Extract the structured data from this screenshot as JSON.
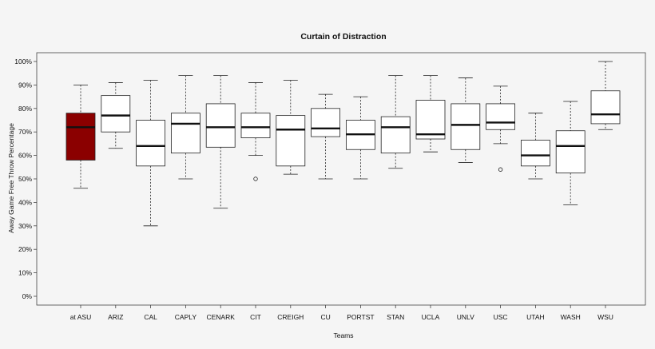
{
  "chart_data": {
    "type": "boxplot",
    "title": "Curtain of Distraction",
    "xlabel": "Teams",
    "ylabel": "Away Game Free Throw Percentage",
    "ylim": [
      0,
      100
    ],
    "yticks": [
      "0%",
      "10%",
      "20%",
      "30%",
      "40%",
      "50%",
      "60%",
      "70%",
      "80%",
      "90%",
      "100%"
    ],
    "ytick_values": [
      0,
      10,
      20,
      30,
      40,
      50,
      60,
      70,
      80,
      90,
      100
    ],
    "grid": false,
    "colors": {
      "highlight": "#8b0000",
      "default_fill": "#ffffff",
      "stroke": "#222222"
    },
    "categories": [
      "at ASU",
      "ARIZ",
      "CAL",
      "CAPLY",
      "CENARK",
      "CIT",
      "CREIGH",
      "CU",
      "PORTST",
      "STAN",
      "UCLA",
      "UNLV",
      "USC",
      "UTAH",
      "WASH",
      "WSU"
    ],
    "series": [
      {
        "category": "at ASU",
        "min": 46,
        "q1": 58,
        "median": 72,
        "q3": 78,
        "max": 90,
        "outliers": [],
        "highlight": true
      },
      {
        "category": "ARIZ",
        "min": 63,
        "q1": 70,
        "median": 77,
        "q3": 85.5,
        "max": 91,
        "outliers": []
      },
      {
        "category": "CAL",
        "min": 30,
        "q1": 55.5,
        "median": 64,
        "q3": 75,
        "max": 92,
        "outliers": []
      },
      {
        "category": "CAPLY",
        "min": 50,
        "q1": 61,
        "median": 73.5,
        "q3": 78,
        "max": 94,
        "outliers": []
      },
      {
        "category": "CENARK",
        "min": 37.5,
        "q1": 63.5,
        "median": 72,
        "q3": 82,
        "max": 94,
        "outliers": []
      },
      {
        "category": "CIT",
        "min": 60,
        "q1": 67.5,
        "median": 72,
        "q3": 78,
        "max": 91,
        "outliers": [
          50
        ]
      },
      {
        "category": "CREIGH",
        "min": 52,
        "q1": 55.5,
        "median": 71,
        "q3": 77,
        "max": 92,
        "outliers": []
      },
      {
        "category": "CU",
        "min": 50,
        "q1": 68,
        "median": 71.5,
        "q3": 80,
        "max": 86,
        "outliers": []
      },
      {
        "category": "PORTST",
        "min": 50,
        "q1": 62.5,
        "median": 69,
        "q3": 75,
        "max": 85,
        "outliers": []
      },
      {
        "category": "STAN",
        "min": 54.5,
        "q1": 61,
        "median": 72,
        "q3": 76.5,
        "max": 94,
        "outliers": []
      },
      {
        "category": "UCLA",
        "min": 61.5,
        "q1": 67,
        "median": 69,
        "q3": 83.5,
        "max": 94,
        "outliers": []
      },
      {
        "category": "UNLV",
        "min": 57,
        "q1": 62.5,
        "median": 73,
        "q3": 82,
        "max": 93,
        "outliers": []
      },
      {
        "category": "USC",
        "min": 65,
        "q1": 71,
        "median": 74,
        "q3": 82,
        "max": 89.5,
        "outliers": [
          54
        ]
      },
      {
        "category": "UTAH",
        "min": 50,
        "q1": 55.5,
        "median": 60,
        "q3": 66.5,
        "max": 78,
        "outliers": []
      },
      {
        "category": "WASH",
        "min": 39,
        "q1": 52.5,
        "median": 64,
        "q3": 70.5,
        "max": 83,
        "outliers": []
      },
      {
        "category": "WSU",
        "min": 71,
        "q1": 73.5,
        "median": 77.5,
        "q3": 87.5,
        "max": 100,
        "outliers": []
      }
    ]
  }
}
